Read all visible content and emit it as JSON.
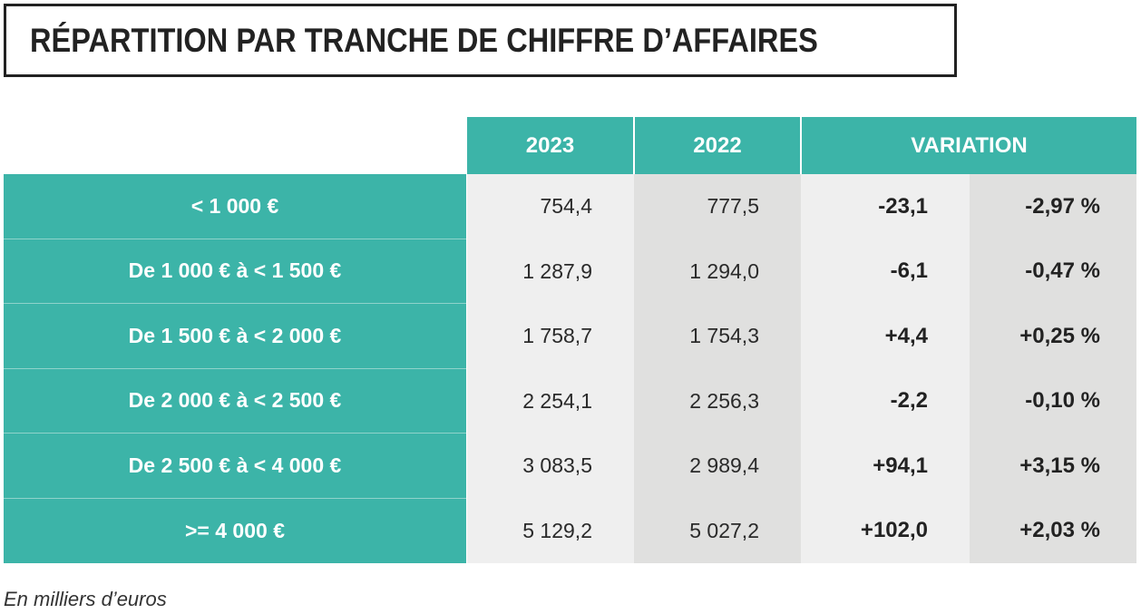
{
  "title": "RÉPARTITION PAR TRANCHE DE CHIFFRE D’AFFAIRES",
  "header": {
    "col_2023": "2023",
    "col_2022": "2022",
    "col_variation": "VARIATION"
  },
  "rows": [
    {
      "label": "< 1 000 €",
      "v2023": "754,4",
      "v2022": "777,5",
      "variation": "-23,1",
      "pct": "-2,97 %"
    },
    {
      "label": "De 1 000 € à < 1 500 €",
      "v2023": "1 287,9",
      "v2022": "1 294,0",
      "variation": "-6,1",
      "pct": "-0,47 %"
    },
    {
      "label": "De 1 500 € à < 2 000 €",
      "v2023": "1 758,7",
      "v2022": "1 754,3",
      "variation": "+4,4",
      "pct": "+0,25 %"
    },
    {
      "label": "De 2 000 € à < 2 500 €",
      "v2023": "2 254,1",
      "v2022": "2 256,3",
      "variation": "-2,2",
      "pct": "-0,10 %"
    },
    {
      "label": "De 2 500 € à < 4 000 €",
      "v2023": "3 083,5",
      "v2022": "2 989,4",
      "variation": "+94,1",
      "pct": "+3,15 %"
    },
    {
      "label": ">= 4 000 €",
      "v2023": "5 129,2",
      "v2022": "5 027,2",
      "variation": "+102,0",
      "pct": "+2,03 %"
    }
  ],
  "note": "En milliers d’euros",
  "colors": {
    "teal": "#3cb4a8",
    "light_gray": "#efefef",
    "mid_gray": "#e0e0df"
  }
}
